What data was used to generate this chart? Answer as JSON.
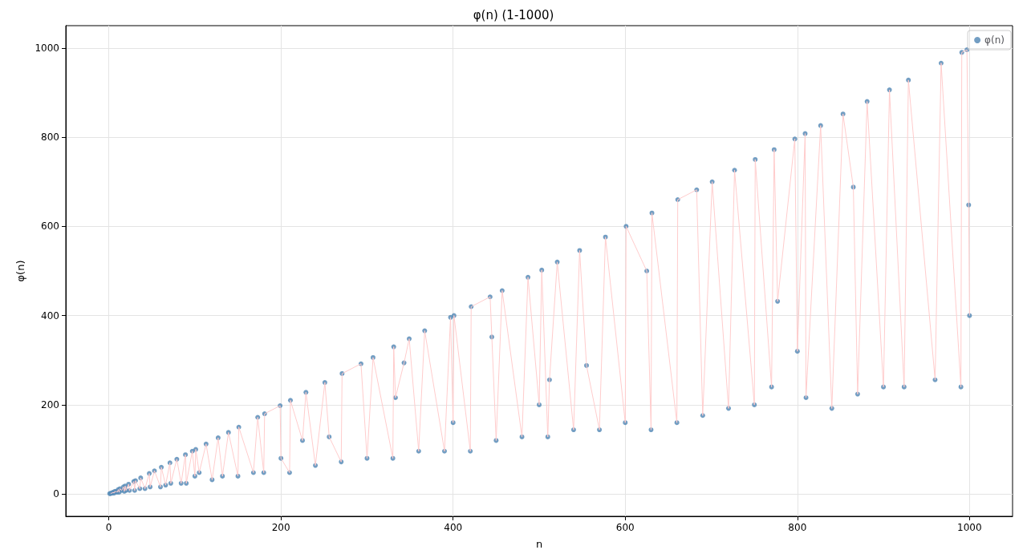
{
  "chart_data": {
    "type": "scatter",
    "title": "φ(n) (1-1000)",
    "xlabel": "n",
    "ylabel": "φ(n)",
    "x": [
      1,
      2,
      3,
      4,
      5,
      6,
      7,
      8,
      9,
      10,
      11,
      12,
      13,
      15,
      17,
      18,
      19,
      20,
      23,
      24,
      29,
      30,
      31,
      36,
      37,
      42,
      47,
      48,
      53,
      60,
      61,
      66,
      71,
      72,
      79,
      84,
      89,
      90,
      97,
      100,
      101,
      105,
      113,
      120,
      127,
      132,
      139,
      150,
      151,
      168,
      173,
      180,
      181,
      199,
      200,
      210,
      211,
      225,
      229,
      240,
      251,
      256,
      270,
      271,
      293,
      300,
      307,
      330,
      331,
      333,
      343,
      349,
      360,
      367,
      390,
      397,
      400,
      401,
      420,
      421,
      443,
      445,
      450,
      457,
      480,
      487,
      500,
      503,
      510,
      512,
      521,
      540,
      547,
      555,
      570,
      577,
      600,
      601,
      625,
      630,
      631,
      660,
      661,
      683,
      690,
      701,
      720,
      727,
      750,
      751,
      770,
      773,
      777,
      797,
      800,
      809,
      810,
      827,
      840,
      853,
      865,
      870,
      881,
      900,
      907,
      924,
      929,
      960,
      967,
      990,
      991,
      997,
      999,
      1000
    ],
    "series": [
      {
        "type": "line",
        "marker": "none",
        "color": "#ffcccc",
        "values": [
          null,
          1,
          2,
          2,
          4,
          2,
          6,
          4,
          6,
          4,
          10,
          4,
          12,
          8,
          16,
          6,
          18,
          8,
          22,
          8,
          28,
          8,
          30,
          12,
          36,
          12,
          46,
          16,
          52,
          16,
          60,
          20,
          70,
          24,
          78,
          24,
          88,
          24,
          96,
          40,
          100,
          48,
          112,
          32,
          126,
          40,
          138,
          40,
          150,
          48,
          172,
          48,
          180,
          198,
          80,
          48,
          210,
          120,
          228,
          64,
          250,
          128,
          72,
          270,
          292,
          80,
          306,
          80,
          330,
          216,
          294,
          348,
          96,
          366,
          96,
          396,
          160,
          400,
          96,
          420,
          442,
          352,
          120,
          456,
          128,
          486,
          200,
          502,
          128,
          256,
          520,
          144,
          546,
          288,
          144,
          576,
          160,
          600,
          500,
          144,
          630,
          160,
          660,
          682,
          176,
          700,
          192,
          726,
          200,
          750,
          240,
          772,
          432,
          796,
          320,
          808,
          216,
          826,
          192,
          852,
          688,
          224,
          880,
          240,
          906,
          240,
          928,
          256,
          966,
          240,
          990,
          996,
          648,
          400
        ]
      },
      {
        "name": "φ(n)",
        "color": "#5b8db8",
        "values": [
          1,
          1,
          2,
          2,
          4,
          2,
          6,
          4,
          6,
          4,
          10,
          4,
          12,
          8,
          16,
          6,
          18,
          8,
          22,
          8,
          28,
          8,
          30,
          12,
          36,
          12,
          46,
          16,
          52,
          16,
          60,
          20,
          70,
          24,
          78,
          24,
          88,
          24,
          96,
          40,
          100,
          48,
          112,
          32,
          126,
          40,
          138,
          40,
          150,
          48,
          172,
          48,
          180,
          198,
          80,
          48,
          210,
          120,
          228,
          64,
          250,
          128,
          72,
          270,
          292,
          80,
          306,
          80,
          330,
          216,
          294,
          348,
          96,
          366,
          96,
          396,
          160,
          400,
          96,
          420,
          442,
          352,
          120,
          456,
          128,
          486,
          200,
          502,
          128,
          256,
          520,
          144,
          546,
          288,
          144,
          576,
          160,
          600,
          500,
          144,
          630,
          160,
          660,
          682,
          176,
          700,
          192,
          726,
          200,
          750,
          240,
          772,
          432,
          796,
          320,
          808,
          216,
          826,
          192,
          852,
          688,
          224,
          880,
          240,
          906,
          240,
          928,
          256,
          966,
          240,
          990,
          996,
          648,
          400
        ]
      }
    ],
    "xlim": [
      -50,
      1050
    ],
    "xticks": [
      0,
      200,
      400,
      600,
      800,
      1000
    ],
    "ylim": [
      -50,
      1050
    ],
    "yticks": [
      0,
      200,
      400,
      600,
      800,
      1000
    ],
    "grid": true,
    "legend": "top right",
    "marker": "circle"
  }
}
